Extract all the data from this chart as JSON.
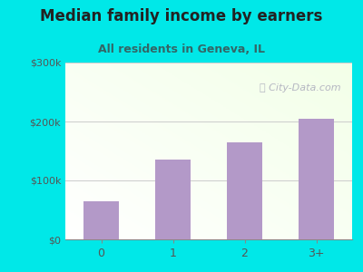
{
  "categories": [
    "0",
    "1",
    "2",
    "3+"
  ],
  "values": [
    65000,
    135000,
    165000,
    205000
  ],
  "bar_color": "#b399c8",
  "title": "Median family income by earners",
  "subtitle": "All residents in Geneva, IL",
  "title_color": "#222222",
  "subtitle_color": "#336666",
  "outer_bg": "#00e8e8",
  "yticks": [
    0,
    100000,
    200000,
    300000
  ],
  "ytick_labels": [
    "$0",
    "$100k",
    "$200k",
    "$300k"
  ],
  "ylim": [
    0,
    300000
  ],
  "watermark": "ⓘ City-Data.com",
  "watermark_color": "#aaaabb",
  "tick_color": "#555555",
  "grid_color": "#cccccc"
}
